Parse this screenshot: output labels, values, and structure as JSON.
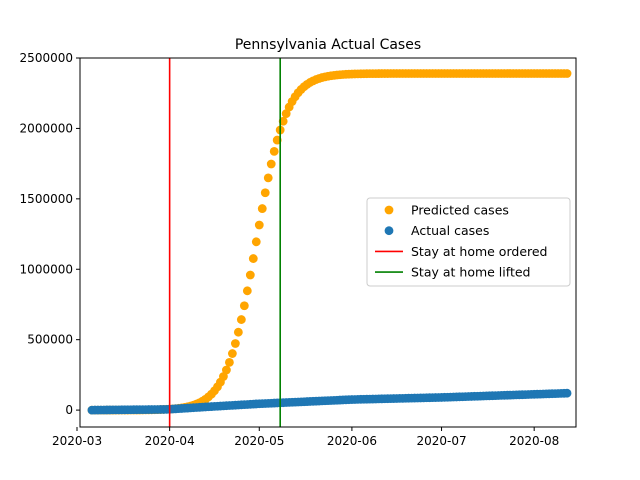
{
  "chart_data": {
    "type": "scatter",
    "title": "Pennsylvania Actual Cases",
    "xlabel": "",
    "ylabel": "",
    "x_range": [
      "2020-03-02",
      "2020-08-15"
    ],
    "ylim": [
      -120000,
      2500000
    ],
    "x_ticks": [
      "2020-03",
      "2020-04",
      "2020-05",
      "2020-06",
      "2020-07",
      "2020-08"
    ],
    "x_tick_dates": [
      "2020-03-01",
      "2020-04-01",
      "2020-05-01",
      "2020-06-01",
      "2020-07-01",
      "2020-08-01"
    ],
    "y_ticks": [
      "0",
      "500000",
      "1000000",
      "1500000",
      "2000000",
      "2500000"
    ],
    "y_tick_values": [
      0,
      500000,
      1000000,
      1500000,
      2000000,
      2500000
    ],
    "grid": false,
    "legend_position": "center-right",
    "series": [
      {
        "name": "Predicted cases",
        "kind": "points",
        "color": "#FFA500",
        "x_start": "2020-03-06",
        "x_end": "2020-08-12",
        "logistic": {
          "capacity": 2390000,
          "midpoint": "2020-04-30",
          "rate": 0.2
        }
      },
      {
        "name": "Actual cases",
        "kind": "points",
        "color": "#1f77b4",
        "x_start": "2020-03-06",
        "x_end": "2020-08-12",
        "anchors": [
          [
            "2020-03-06",
            0
          ],
          [
            "2020-03-31",
            5000
          ],
          [
            "2020-04-15",
            25000
          ],
          [
            "2020-05-01",
            45000
          ],
          [
            "2020-06-01",
            75000
          ],
          [
            "2020-07-01",
            90000
          ],
          [
            "2020-08-12",
            120000
          ]
        ]
      },
      {
        "name": "Stay at home ordered",
        "kind": "vline",
        "color": "#ff0000",
        "x": "2020-04-01"
      },
      {
        "name": "Stay at home lifted",
        "kind": "vline",
        "color": "#008000",
        "x": "2020-05-08"
      }
    ]
  }
}
